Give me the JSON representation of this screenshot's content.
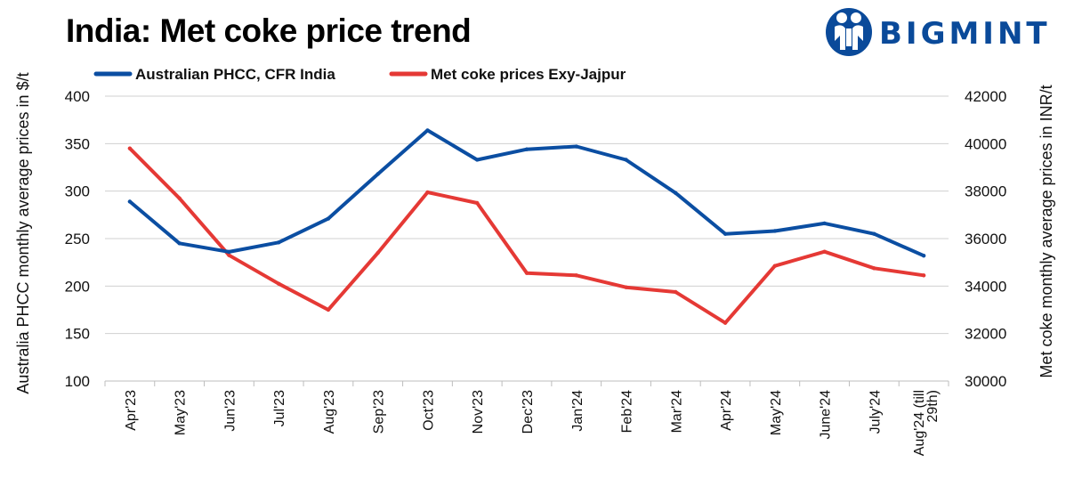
{
  "header": {
    "title": "India: Met coke price trend",
    "brand": "BIGMINT"
  },
  "chart_data": {
    "type": "line",
    "title": "India: Met coke price trend",
    "categories": [
      "Apr'23",
      "May'23",
      "Jun'23",
      "Jul'23",
      "Aug'23",
      "Sep'23",
      "Oct'23",
      "Nov'23",
      "Dec'23",
      "Jan'24",
      "Feb'24",
      "Mar'24",
      "Apr'24",
      "May'24",
      "June'24",
      "July'24",
      "Aug'24 (till 29th)"
    ],
    "y_left": {
      "label": "Australia PHCC monthly average prices in $/t",
      "ylim": [
        100,
        400
      ],
      "ticks": [
        100,
        150,
        200,
        250,
        300,
        350,
        400
      ]
    },
    "y_right": {
      "label": "Met coke monthly average prices in INR/t",
      "ylim": [
        30000,
        42000
      ],
      "ticks": [
        30000,
        32000,
        34000,
        36000,
        38000,
        40000,
        42000
      ]
    },
    "legend_position": "top",
    "grid": true,
    "series": [
      {
        "name": "Australian PHCC, CFR India",
        "axis": "left",
        "color": "#0b4ea2",
        "values": [
          289,
          245,
          236,
          246,
          271,
          318,
          364,
          333,
          344,
          347,
          333,
          298,
          255,
          258,
          266,
          255,
          232
        ]
      },
      {
        "name": "Met coke prices Exy-Jajpur",
        "axis": "right",
        "color": "#e53935",
        "values": [
          39800,
          37700,
          35300,
          34100,
          33000,
          35400,
          37950,
          37500,
          34550,
          34450,
          33950,
          33750,
          32450,
          34850,
          35450,
          34750,
          34450
        ]
      }
    ]
  }
}
